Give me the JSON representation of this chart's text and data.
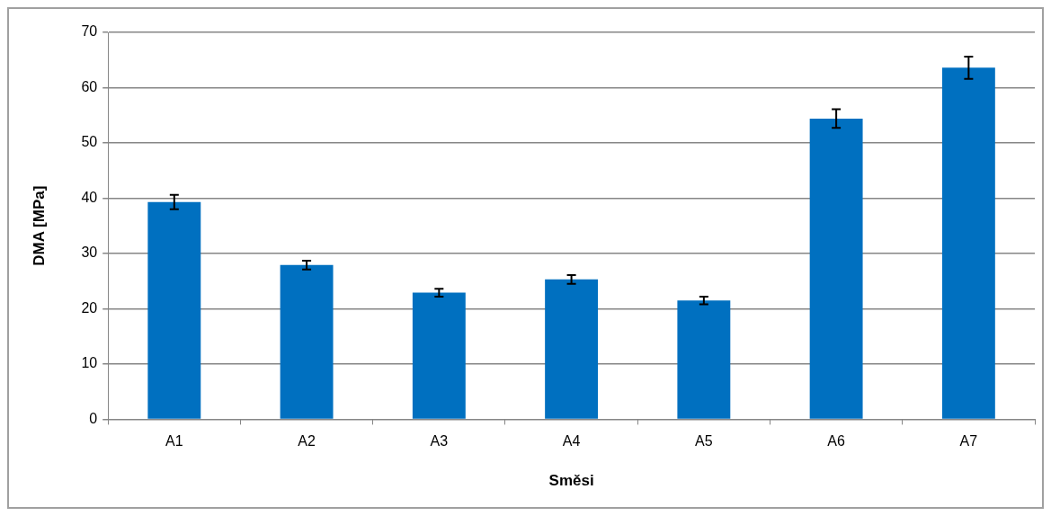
{
  "chart_data": {
    "type": "bar",
    "xlabel": "Směsi",
    "ylabel": "DMA [MPa]",
    "categories": [
      "A1",
      "A2",
      "A3",
      "A4",
      "A5",
      "A6",
      "A7"
    ],
    "values": [
      39.3,
      27.9,
      22.9,
      25.3,
      21.5,
      54.4,
      63.6
    ],
    "errors": [
      1.3,
      0.8,
      0.7,
      0.8,
      0.7,
      1.7,
      2.0
    ],
    "color": "#0070c0",
    "ylim": [
      0,
      70
    ],
    "yticks": [
      0,
      10,
      20,
      30,
      40,
      50,
      60,
      70
    ],
    "grid": "y",
    "legend": false
  }
}
